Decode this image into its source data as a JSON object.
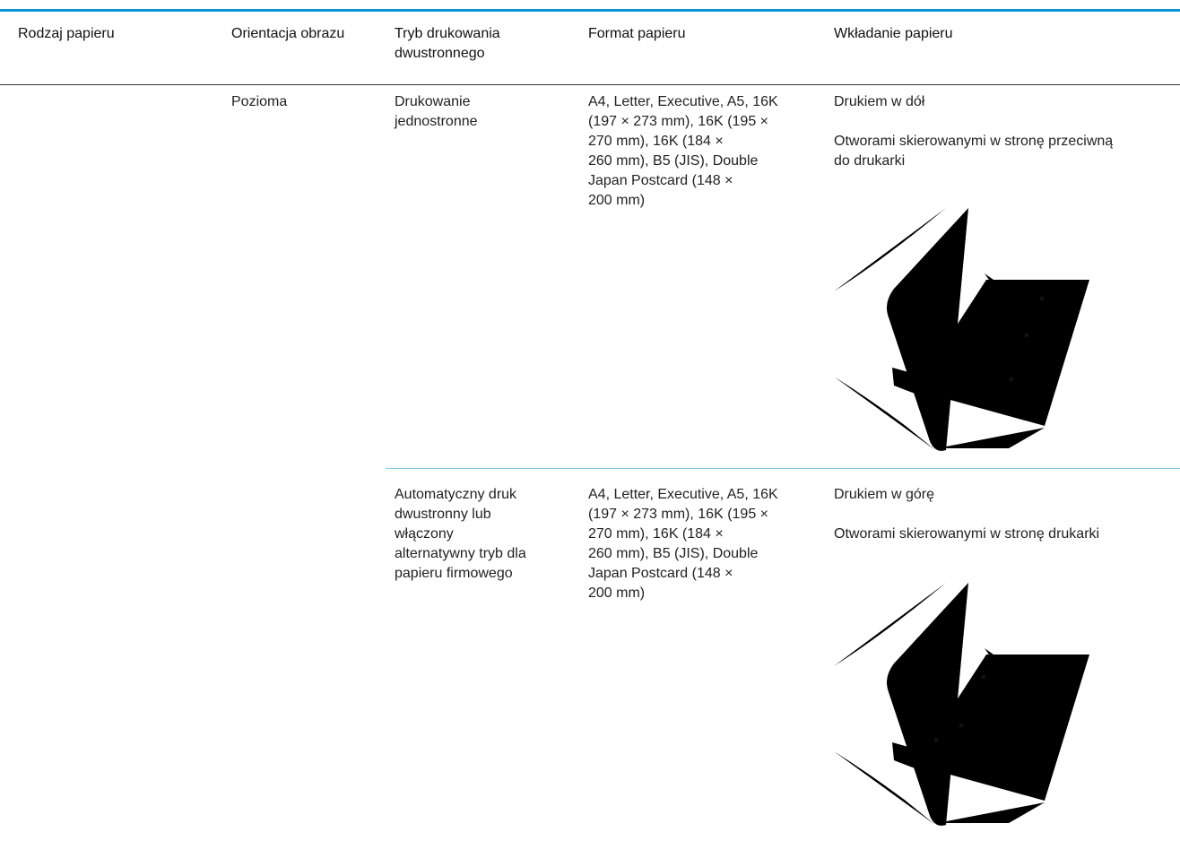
{
  "table": {
    "headers": [
      "Rodzaj papieru",
      "Orientacja obrazu",
      [
        "Tryb drukowania",
        "dwustronnego"
      ],
      "Format papieru",
      "Wkładanie papieru"
    ],
    "rows": [
      {
        "orientation": "Pozioma",
        "mode": [
          "Drukowanie",
          "jednostronne"
        ],
        "format": [
          "A4, Letter, Executive, A5, 16K",
          "(197 × 273 mm), 16K (195 ×",
          "270 mm), 16K (184 ×",
          "260 mm), B5 (JIS), Double",
          "Japan Postcard (148 ×",
          "200 mm)"
        ],
        "loading": [
          [
            "Drukiem w dół"
          ],
          [
            "Otworami skierowanymi w stronę przeciwną",
            "do drukarki"
          ]
        ]
      },
      {
        "mode": [
          "Automatyczny druk",
          "dwustronny lub",
          "włączony",
          "alternatywny tryb dla",
          "papieru firmowego"
        ],
        "format": [
          "A4, Letter, Executive, A5, 16K",
          "(197 × 273 mm), 16K (195 ×",
          "270 mm), 16K (184 ×",
          "260 mm), B5 (JIS), Double",
          "Japan Postcard (148 ×",
          "200 mm)"
        ],
        "loading": [
          [
            "Drukiem w górę"
          ],
          [
            "Otworami skierowanymi w stronę drukarki"
          ]
        ]
      }
    ]
  }
}
